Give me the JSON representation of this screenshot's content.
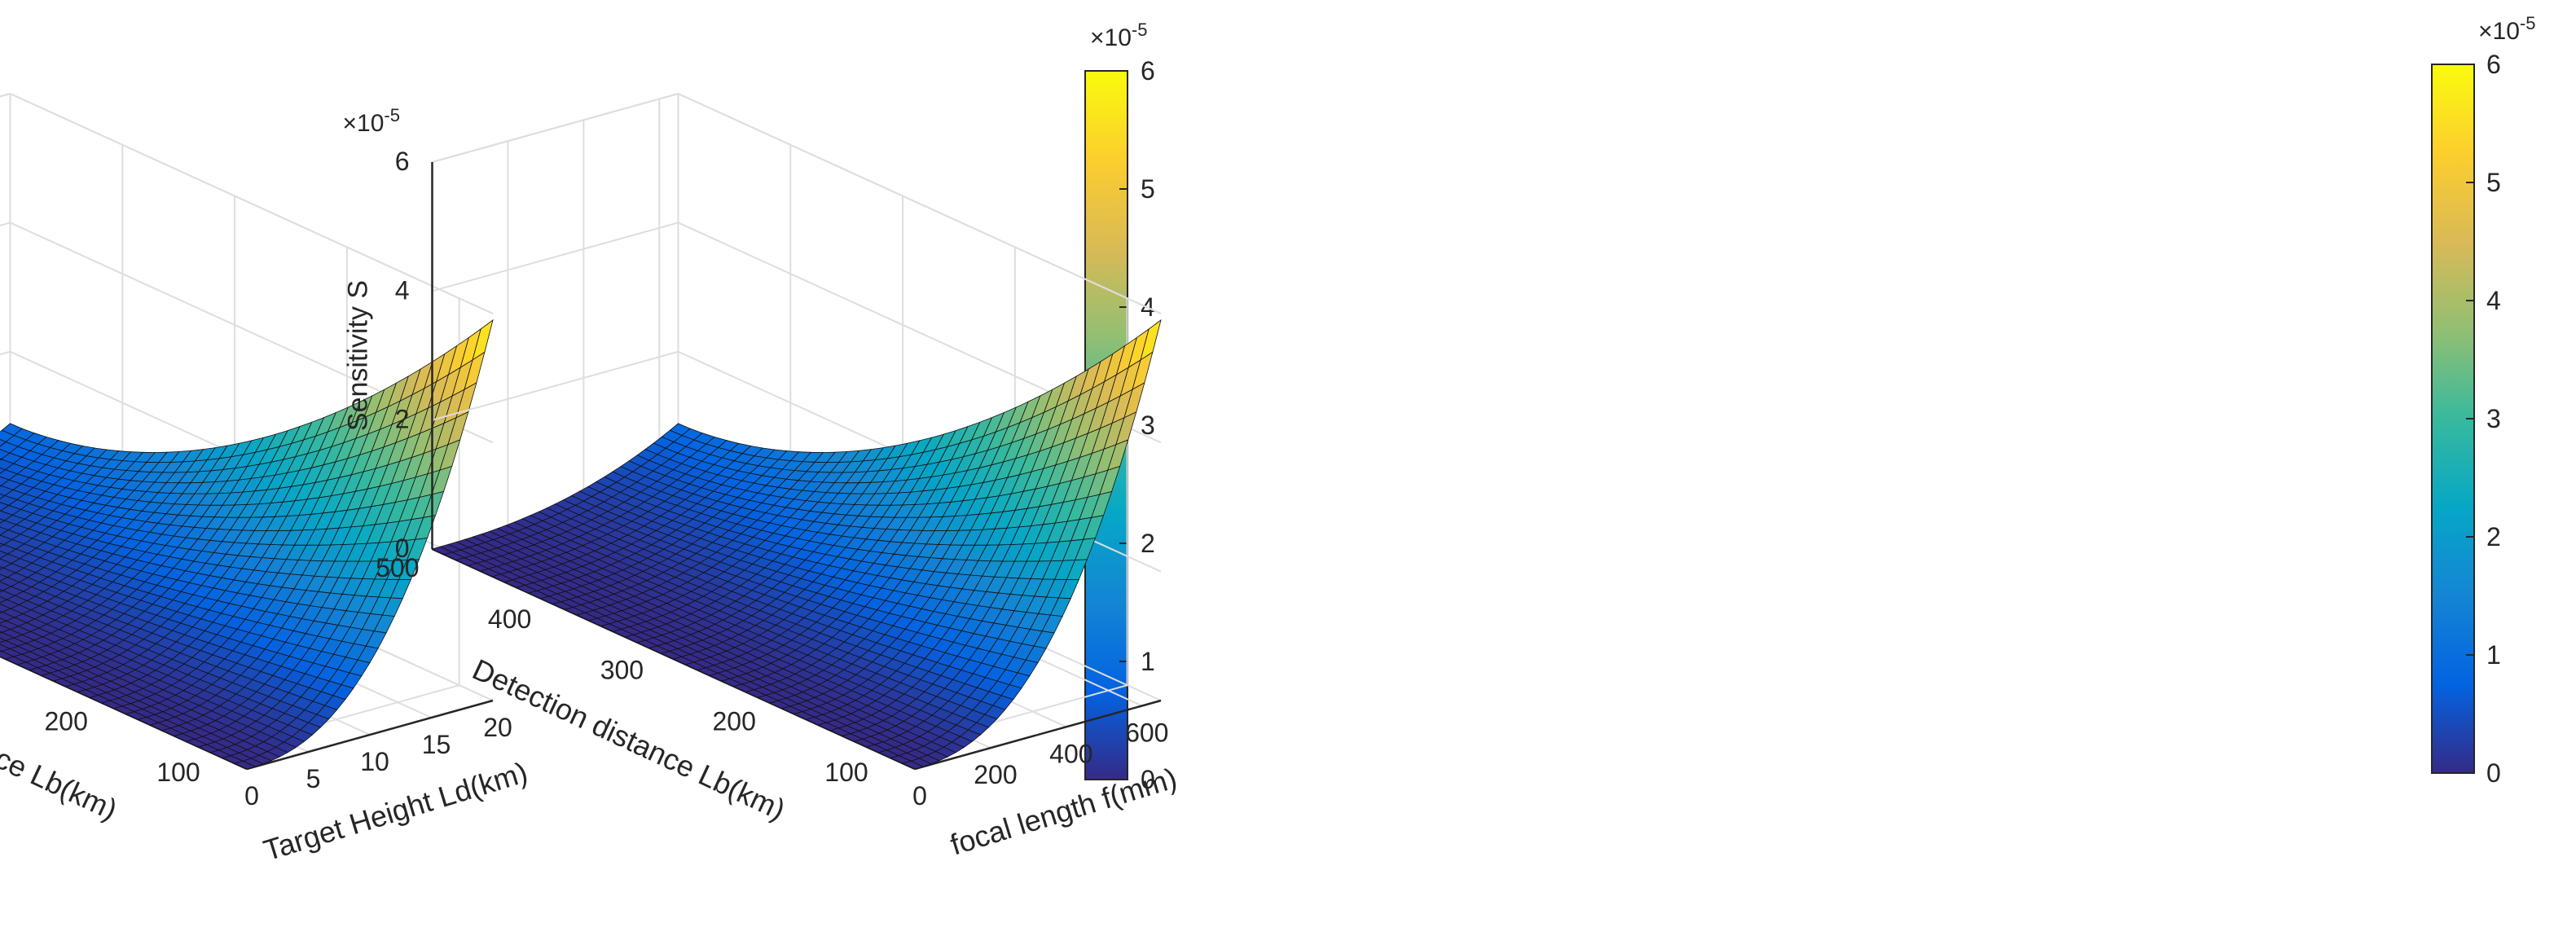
{
  "chart_data": [
    {
      "type": "surface3d",
      "zlabel": "Sensitivity S",
      "xlabel": "Detection distance Lb(km)",
      "ylabel": "Target Height Ld(km)",
      "z_exponent": "×10",
      "z_exponent_power": "-5",
      "x_ticks": [
        "500",
        "400",
        "300",
        "200",
        "100"
      ],
      "x_tick_values": [
        500,
        400,
        300,
        200,
        100
      ],
      "xlim": [
        70,
        500
      ],
      "y_ticks": [
        "0",
        "5",
        "10",
        "15",
        "20"
      ],
      "y_tick_values": [
        0,
        5,
        10,
        15,
        20
      ],
      "ylim": [
        0,
        20
      ],
      "z_ticks": [
        "0",
        "2",
        "4",
        "6"
      ],
      "z_tick_values": [
        0,
        2,
        4,
        6
      ],
      "zlim": [
        0,
        6
      ],
      "peak_value": 5.9,
      "colorbar": {
        "ticks": [
          "0",
          "1",
          "2",
          "3",
          "4",
          "5",
          "6"
        ],
        "exponent": "×10",
        "exponent_power": "-5",
        "range": [
          0,
          6
        ]
      }
    },
    {
      "type": "surface3d",
      "zlabel": "Sensitivity S",
      "xlabel": "Detection distance Lb(km)",
      "ylabel": "focal length f(mm)",
      "z_exponent": "×10",
      "z_exponent_power": "-5",
      "x_ticks": [
        "500",
        "400",
        "300",
        "200",
        "100"
      ],
      "x_tick_values": [
        500,
        400,
        300,
        200,
        100
      ],
      "xlim": [
        70,
        500
      ],
      "y_ticks": [
        "0",
        "200",
        "400",
        "600"
      ],
      "y_tick_values": [
        0,
        200,
        400,
        600
      ],
      "ylim": [
        0,
        650
      ],
      "z_ticks": [
        "0",
        "2",
        "4",
        "6"
      ],
      "z_tick_values": [
        0,
        2,
        4,
        6
      ],
      "zlim": [
        0,
        6
      ],
      "peak_value": 5.9,
      "colorbar": {
        "ticks": [
          "0",
          "1",
          "2",
          "3",
          "4",
          "5",
          "6"
        ],
        "exponent": "×10",
        "exponent_power": "-5",
        "range": [
          0,
          6
        ]
      }
    }
  ]
}
